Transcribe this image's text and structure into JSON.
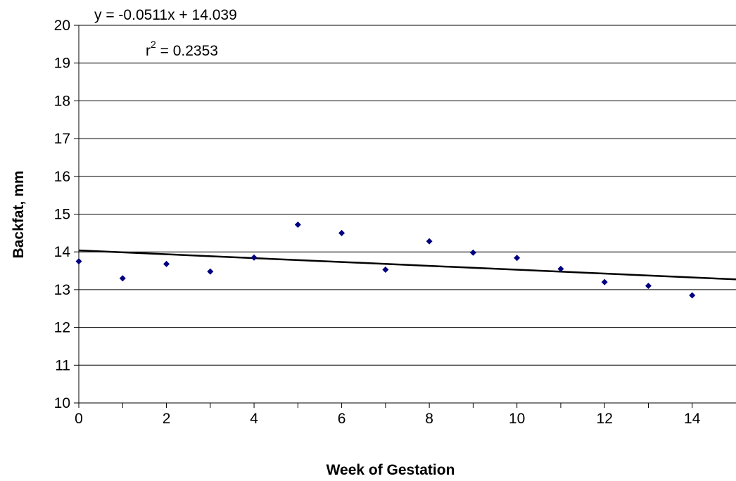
{
  "chart_data": {
    "type": "scatter",
    "xlabel": "Week of Gestation",
    "ylabel": "Backfat, mm",
    "xlim": [
      0,
      15
    ],
    "ylim": [
      10,
      20
    ],
    "x_ticks": [
      "0",
      "2",
      "4",
      "6",
      "8",
      "10",
      "12",
      "14"
    ],
    "y_ticks": [
      "10",
      "11",
      "12",
      "13",
      "14",
      "15",
      "16",
      "17",
      "18",
      "19",
      "20"
    ],
    "grid": "horizontal",
    "point_color": "#000080",
    "series": [
      {
        "x": [
          0,
          1,
          2,
          3,
          4,
          5,
          6,
          7,
          8,
          9,
          10,
          11,
          12,
          13,
          14
        ],
        "y": [
          13.75,
          13.3,
          13.68,
          13.48,
          13.85,
          14.72,
          14.5,
          13.53,
          14.28,
          13.98,
          13.84,
          13.55,
          13.2,
          13.1,
          12.85
        ]
      }
    ],
    "trendline": {
      "slope": -0.0511,
      "intercept": 14.039,
      "equation": "y = -0.0511x + 14.039",
      "r2_prefix": "r",
      "r2_sup": "2",
      "r2_value": " = 0.2353"
    }
  }
}
